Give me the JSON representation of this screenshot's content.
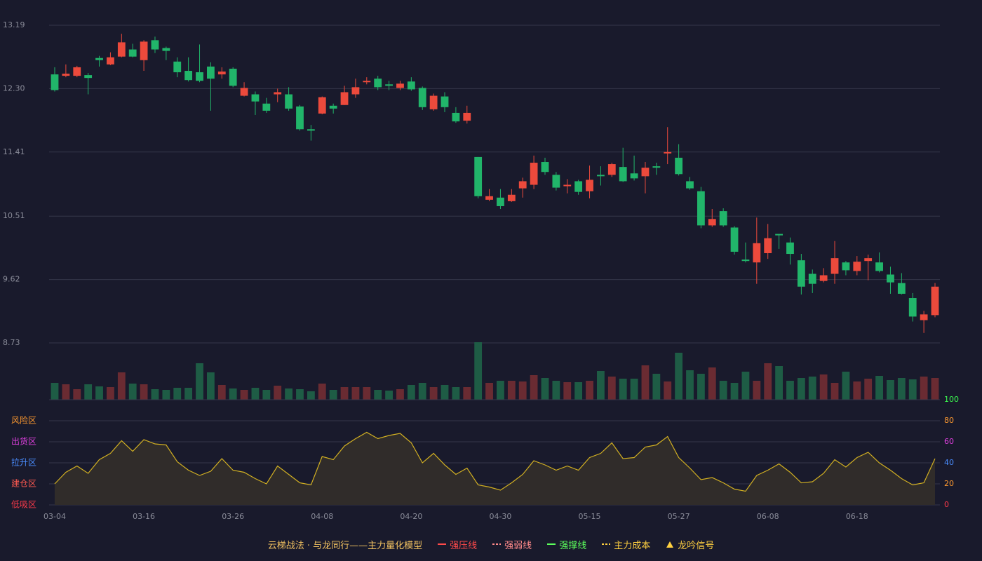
{
  "chart_data": {
    "type": "candlestick",
    "categories": [
      "03-04",
      null,
      null,
      null,
      null,
      null,
      null,
      null,
      "03-16",
      null,
      null,
      null,
      null,
      null,
      null,
      null,
      "03-26",
      null,
      null,
      null,
      null,
      null,
      null,
      null,
      "04-08",
      null,
      null,
      null,
      null,
      null,
      null,
      null,
      "04-20",
      null,
      null,
      null,
      null,
      null,
      null,
      null,
      "04-30",
      null,
      null,
      null,
      null,
      null,
      null,
      null,
      "05-15",
      null,
      null,
      null,
      null,
      null,
      null,
      null,
      "05-27",
      null,
      null,
      null,
      null,
      null,
      null,
      null,
      "06-08",
      null,
      null,
      null,
      null,
      null,
      null,
      null,
      "06-18",
      null,
      null,
      null,
      null,
      null,
      null,
      null
    ],
    "open": [
      12.5,
      12.48,
      12.48,
      12.49,
      12.73,
      12.64,
      12.75,
      12.85,
      12.7,
      12.98,
      12.87,
      12.68,
      12.55,
      12.53,
      12.61,
      12.5,
      12.58,
      12.2,
      12.22,
      12.09,
      12.22,
      12.22,
      12.05,
      11.73,
      11.95,
      12.06,
      12.07,
      12.22,
      12.39,
      12.44,
      12.36,
      12.31,
      12.4,
      12.31,
      12.01,
      12.19,
      11.96,
      11.85,
      11.34,
      10.74,
      10.77,
      10.72,
      10.9,
      10.95,
      11.27,
      11.09,
      10.93,
      11.0,
      10.86,
      11.09,
      11.09,
      11.2,
      11.11,
      11.07,
      11.21,
      11.39,
      11.33,
      11.0,
      10.86,
      10.38,
      10.58,
      10.35,
      9.9,
      9.86,
      9.99,
      10.26,
      10.14,
      9.89,
      9.7,
      9.6,
      9.7,
      9.86,
      9.74,
      9.88,
      9.86,
      9.69,
      9.57,
      9.36,
      9.05,
      9.12
    ],
    "high": [
      12.6,
      12.64,
      12.62,
      12.52,
      12.76,
      12.81,
      13.07,
      12.93,
      12.98,
      13.03,
      12.89,
      12.74,
      12.74,
      12.92,
      12.67,
      12.6,
      12.6,
      12.39,
      12.26,
      12.17,
      12.3,
      12.32,
      12.07,
      11.79,
      12.19,
      12.09,
      12.34,
      12.44,
      12.46,
      12.48,
      12.41,
      12.41,
      12.46,
      12.33,
      12.23,
      12.25,
      12.04,
      12.06,
      11.34,
      10.89,
      10.89,
      10.89,
      11.05,
      11.36,
      11.33,
      11.13,
      11.03,
      11.02,
      11.22,
      11.21,
      11.26,
      11.47,
      11.36,
      11.27,
      11.26,
      11.76,
      11.52,
      11.06,
      10.92,
      10.61,
      10.62,
      10.37,
      10.14,
      10.49,
      10.4,
      10.26,
      10.21,
      9.98,
      9.76,
      9.78,
      10.16,
      9.88,
      9.95,
      9.97,
      10.0,
      9.8,
      9.71,
      9.43,
      9.18,
      9.57
    ],
    "low": [
      12.26,
      12.46,
      12.46,
      12.22,
      12.61,
      12.63,
      12.74,
      12.74,
      12.55,
      12.8,
      12.7,
      12.46,
      12.4,
      12.39,
      11.99,
      12.44,
      12.32,
      12.19,
      11.93,
      11.96,
      12.11,
      11.99,
      11.71,
      11.57,
      11.94,
      11.95,
      12.07,
      12.17,
      12.36,
      12.28,
      12.28,
      12.28,
      12.27,
      12.0,
      11.99,
      11.97,
      11.82,
      11.81,
      10.76,
      10.72,
      10.61,
      10.71,
      10.77,
      10.89,
      11.09,
      10.87,
      10.83,
      10.81,
      10.76,
      10.94,
      11.06,
      10.99,
      11.01,
      10.83,
      11.09,
      11.24,
      11.08,
      10.88,
      10.34,
      10.36,
      10.36,
      9.97,
      9.86,
      9.56,
      9.91,
      10.05,
      9.83,
      9.41,
      9.43,
      9.58,
      9.56,
      9.68,
      9.68,
      9.61,
      9.72,
      9.42,
      9.41,
      9.03,
      8.87,
      9.09
    ],
    "close": [
      12.28,
      12.51,
      12.6,
      12.45,
      12.7,
      12.74,
      12.95,
      12.75,
      12.96,
      12.85,
      12.83,
      12.53,
      12.42,
      12.41,
      12.44,
      12.54,
      12.34,
      12.31,
      12.12,
      11.99,
      12.25,
      12.02,
      11.73,
      11.71,
      12.18,
      12.02,
      12.25,
      12.32,
      12.41,
      12.32,
      12.34,
      12.37,
      12.29,
      12.04,
      12.2,
      12.04,
      11.84,
      11.96,
      10.79,
      10.79,
      10.65,
      10.81,
      11.0,
      11.26,
      11.13,
      10.91,
      10.95,
      10.85,
      11.02,
      11.07,
      11.24,
      11.0,
      11.04,
      11.19,
      11.19,
      11.41,
      11.1,
      10.9,
      10.38,
      10.47,
      10.38,
      10.01,
      9.88,
      10.13,
      10.2,
      10.24,
      9.98,
      9.52,
      9.56,
      9.68,
      9.92,
      9.75,
      9.87,
      9.92,
      9.74,
      9.58,
      9.42,
      9.1,
      9.13,
      9.52
    ],
    "up_color": "#ec4a3c",
    "down_color": "#21b56a",
    "ylim": [
      8.73,
      13.19
    ],
    "yticks": [
      8.73,
      9.62,
      10.51,
      11.41,
      {
        "value": 12.3,
        "label": "12.30"
      },
      13.19
    ],
    "grid": true,
    "volume": {
      "values": [
        24,
        22,
        15,
        22,
        19,
        18,
        39,
        23,
        22,
        15,
        14,
        17,
        17,
        52,
        39,
        21,
        16,
        14,
        17,
        14,
        20,
        16,
        15,
        12,
        23,
        14,
        18,
        18,
        18,
        14,
        13,
        15,
        21,
        24,
        18,
        21,
        18,
        18,
        82,
        24,
        27,
        27,
        26,
        35,
        31,
        27,
        25,
        25,
        27,
        41,
        33,
        30,
        30,
        49,
        37,
        26,
        67,
        42,
        37,
        46,
        27,
        24,
        40,
        27,
        52,
        48,
        27,
        31,
        33,
        36,
        24,
        40,
        26,
        30,
        34,
        28,
        31,
        29,
        33,
        31
      ],
      "up_color": "#6a2b32",
      "down_color": "#1e5c45"
    },
    "indicator": {
      "type": "area",
      "values": [
        20,
        31,
        37,
        30,
        43,
        49,
        61,
        51,
        62,
        58,
        57,
        41,
        33,
        28,
        32,
        44,
        33,
        31,
        25,
        20,
        37,
        29,
        21,
        19,
        46,
        43,
        56,
        63,
        69,
        63,
        66,
        68,
        59,
        40,
        49,
        38,
        29,
        35,
        19,
        17,
        14,
        21,
        29,
        42,
        38,
        33,
        37,
        33,
        45,
        49,
        59,
        44,
        45,
        55,
        57,
        65,
        45,
        35,
        24,
        26,
        21,
        15,
        13,
        28,
        33,
        39,
        31,
        21,
        22,
        30,
        43,
        36,
        45,
        50,
        40,
        33,
        25,
        19,
        21,
        44
      ],
      "color": "#d2b022",
      "fill": "#302c2a",
      "ylim": [
        0,
        100
      ],
      "yticks": [
        0,
        20,
        40,
        60,
        80,
        100
      ],
      "ytick_colors": [
        "#ff3a4a",
        "#ff9a30",
        "#4a8dff",
        "#e040e0",
        "#ff9a30",
        "#3cff50"
      ],
      "zones": [
        {
          "value": 80,
          "label": "风险区",
          "color": "#ff9a30"
        },
        {
          "value": 60,
          "label": "出货区",
          "color": "#e040e0"
        },
        {
          "value": 40,
          "label": "拉升区",
          "color": "#4a8dff"
        },
        {
          "value": 20,
          "label": "建仓区",
          "color": "#ff5a50"
        },
        {
          "value": 0,
          "label": "低吸区",
          "color": "#ff3a4a"
        }
      ]
    },
    "legend": {
      "title": "云梯战法 · 与龙同行——主力量化模型",
      "title_color": "#f0c060",
      "items": [
        {
          "name": "强压线",
          "color": "#ff4a4a",
          "style": "solid"
        },
        {
          "name": "强弱线",
          "color": "#ff8a8a",
          "style": "dashed"
        },
        {
          "name": "强撑线",
          "color": "#5cff5c",
          "style": "solid"
        },
        {
          "name": "主力成本",
          "color": "#ffd040",
          "style": "dashed"
        },
        {
          "name": "龙吟信号",
          "color": "#ffd040",
          "style": "triangle"
        }
      ]
    }
  }
}
